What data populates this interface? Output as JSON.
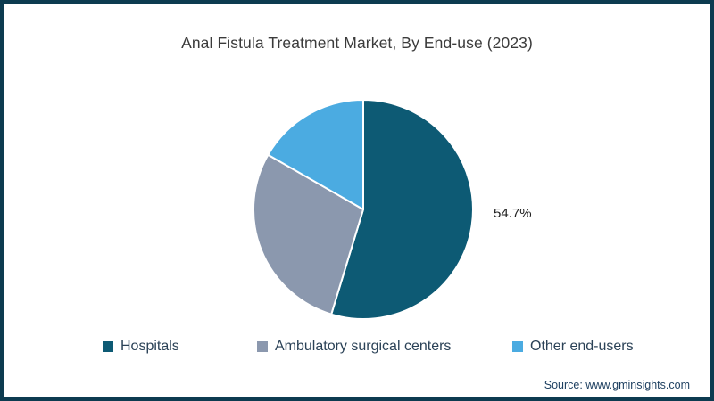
{
  "window": {
    "background": "#ffffff",
    "frame_border_color": "#0d3b50"
  },
  "chart_data": {
    "type": "pie",
    "title": "Anal Fistula Treatment Market, By End-use (2023)",
    "unit": "%",
    "direction": "clockwise",
    "start_angle_deg": 0,
    "legend_position": "bottom",
    "slices": [
      {
        "label": "Hospitals",
        "value": 54.7,
        "estimated": false,
        "data_label": "54.7%",
        "color": "#0d5a74"
      },
      {
        "label": "Ambulatory surgical centers",
        "value": 28.6,
        "estimated": true,
        "data_label": "",
        "color": "#8b98ae"
      },
      {
        "label": "Other end-users",
        "value": 16.7,
        "estimated": true,
        "data_label": "",
        "color": "#4babe1"
      }
    ],
    "slice_border_color": "#ffffff"
  },
  "source": "Source: www.gminsights.com"
}
